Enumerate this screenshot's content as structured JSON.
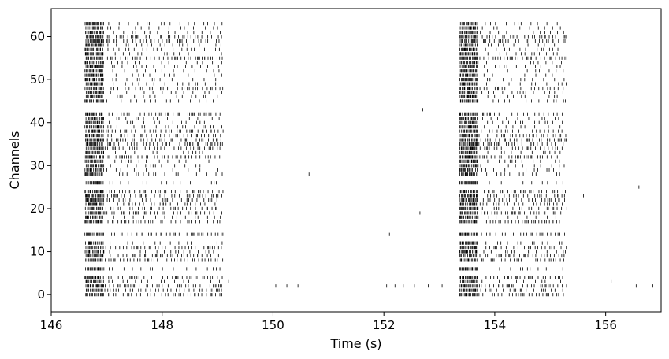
{
  "chart_data": {
    "type": "raster",
    "title": "",
    "xlabel": "Time (s)",
    "ylabel": "Channels",
    "xlim": [
      146,
      157
    ],
    "ylim": [
      -4,
      66.5
    ],
    "xticks": [
      146,
      148,
      150,
      152,
      154,
      156
    ],
    "yticks": [
      0,
      10,
      20,
      30,
      40,
      50,
      60
    ],
    "xtick_labels": [
      "146",
      "148",
      "150",
      "152",
      "154",
      "156"
    ],
    "ytick_labels": [
      "0",
      "10",
      "20",
      "30",
      "40",
      "50",
      "60"
    ],
    "grid": false,
    "legend": "none",
    "mark_color": "#000000",
    "bursts": [
      {
        "start": 146.6,
        "end": 149.1
      },
      {
        "start": 153.35,
        "end": 155.3
      }
    ],
    "channels": 64,
    "active_channels": [
      0,
      1,
      2,
      3,
      4,
      6,
      8,
      9,
      10,
      11,
      12,
      14,
      17,
      18,
      19,
      20,
      21,
      22,
      23,
      24,
      26,
      28,
      29,
      30,
      31,
      32,
      33,
      34,
      35,
      36,
      37,
      38,
      39,
      40,
      41,
      42,
      45,
      46,
      47,
      48,
      49,
      50,
      51,
      52,
      53,
      54,
      55,
      56,
      57,
      58,
      59,
      60,
      61,
      62,
      63
    ],
    "isolated_spikes": [
      {
        "channel": 2,
        "time": 150.05
      },
      {
        "channel": 2,
        "time": 150.25
      },
      {
        "channel": 2,
        "time": 150.45
      },
      {
        "channel": 2,
        "time": 151.55
      },
      {
        "channel": 2,
        "time": 152.05
      },
      {
        "channel": 2,
        "time": 152.2
      },
      {
        "channel": 2,
        "time": 152.35
      },
      {
        "channel": 2,
        "time": 152.55
      },
      {
        "channel": 2,
        "time": 152.8
      },
      {
        "channel": 2,
        "time": 153.05
      },
      {
        "channel": 2,
        "time": 156.55
      },
      {
        "channel": 2,
        "time": 156.85
      },
      {
        "channel": 3,
        "time": 149.2
      },
      {
        "channel": 3,
        "time": 155.5
      },
      {
        "channel": 3,
        "time": 156.1
      },
      {
        "channel": 14,
        "time": 152.1
      },
      {
        "channel": 19,
        "time": 152.65
      },
      {
        "channel": 23,
        "time": 155.6
      },
      {
        "channel": 25,
        "time": 156.6
      },
      {
        "channel": 28,
        "time": 150.65
      },
      {
        "channel": 43,
        "time": 152.7
      }
    ]
  }
}
